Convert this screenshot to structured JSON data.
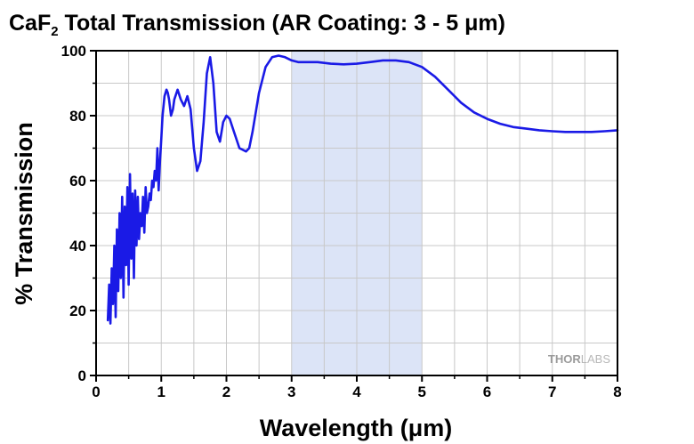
{
  "chart_data": {
    "type": "line",
    "title": {
      "main_prefix": "CaF",
      "subscript": "2",
      "main_suffix": " Total Transmission (AR Coating: 3 - 5 μm)"
    },
    "xlabel": "Wavelength (μm)",
    "ylabel": "% Transmission",
    "xlim": [
      0,
      8
    ],
    "ylim": [
      0,
      100
    ],
    "x_ticks": [
      0,
      1,
      2,
      3,
      4,
      5,
      6,
      7,
      8
    ],
    "y_ticks": [
      0,
      20,
      40,
      60,
      80,
      100
    ],
    "x_tick_labels": [
      "0",
      "1",
      "2",
      "3",
      "4",
      "5",
      "6",
      "7",
      "8"
    ],
    "y_tick_labels": [
      "0",
      "20",
      "40",
      "60",
      "80",
      "100"
    ],
    "grid": true,
    "highlight_band": {
      "x_range": [
        3,
        5
      ],
      "color": "#dce4f7"
    },
    "series": [
      {
        "color": "#1a1ae6",
        "x": [
          0.18,
          0.2,
          0.22,
          0.24,
          0.26,
          0.28,
          0.3,
          0.32,
          0.34,
          0.36,
          0.38,
          0.4,
          0.42,
          0.44,
          0.46,
          0.48,
          0.5,
          0.52,
          0.54,
          0.56,
          0.58,
          0.6,
          0.62,
          0.64,
          0.66,
          0.68,
          0.7,
          0.72,
          0.74,
          0.76,
          0.78,
          0.8,
          0.82,
          0.84,
          0.86,
          0.88,
          0.9,
          0.92,
          0.94,
          0.96,
          0.98,
          1.0,
          1.02,
          1.05,
          1.08,
          1.1,
          1.12,
          1.15,
          1.18,
          1.2,
          1.25,
          1.3,
          1.35,
          1.4,
          1.45,
          1.5,
          1.55,
          1.6,
          1.65,
          1.7,
          1.75,
          1.8,
          1.85,
          1.9,
          1.95,
          2.0,
          2.05,
          2.1,
          2.2,
          2.3,
          2.35,
          2.4,
          2.5,
          2.6,
          2.7,
          2.8,
          2.9,
          3.0,
          3.1,
          3.2,
          3.4,
          3.6,
          3.8,
          4.0,
          4.2,
          4.4,
          4.6,
          4.8,
          5.0,
          5.2,
          5.4,
          5.6,
          5.8,
          6.0,
          6.2,
          6.4,
          6.6,
          6.8,
          7.0,
          7.2,
          7.4,
          7.6,
          7.8,
          8.0
        ],
        "y": [
          17,
          28,
          16,
          33,
          22,
          40,
          18,
          45,
          26,
          50,
          30,
          55,
          24,
          52,
          34,
          58,
          28,
          62,
          36,
          56,
          30,
          57,
          40,
          55,
          42,
          50,
          46,
          55,
          44,
          58,
          50,
          52,
          56,
          54,
          60,
          58,
          63,
          60,
          70,
          57,
          66,
          73,
          80,
          86,
          88,
          87,
          85,
          80,
          82,
          85,
          88,
          85,
          83,
          86,
          82,
          70,
          63,
          66,
          78,
          93,
          98,
          90,
          75,
          72,
          78,
          80,
          79,
          76,
          70,
          69,
          70,
          75,
          87,
          95,
          98,
          98.5,
          98,
          97,
          96.5,
          96.5,
          96.5,
          96,
          95.8,
          96,
          96.5,
          97,
          97,
          96.5,
          95,
          92,
          88,
          84,
          81,
          79,
          77.5,
          76.5,
          76,
          75.5,
          75.2,
          75,
          75,
          75,
          75.2,
          75.5
        ]
      }
    ]
  },
  "watermark": {
    "part1": "THOR",
    "part2": "LABS"
  }
}
